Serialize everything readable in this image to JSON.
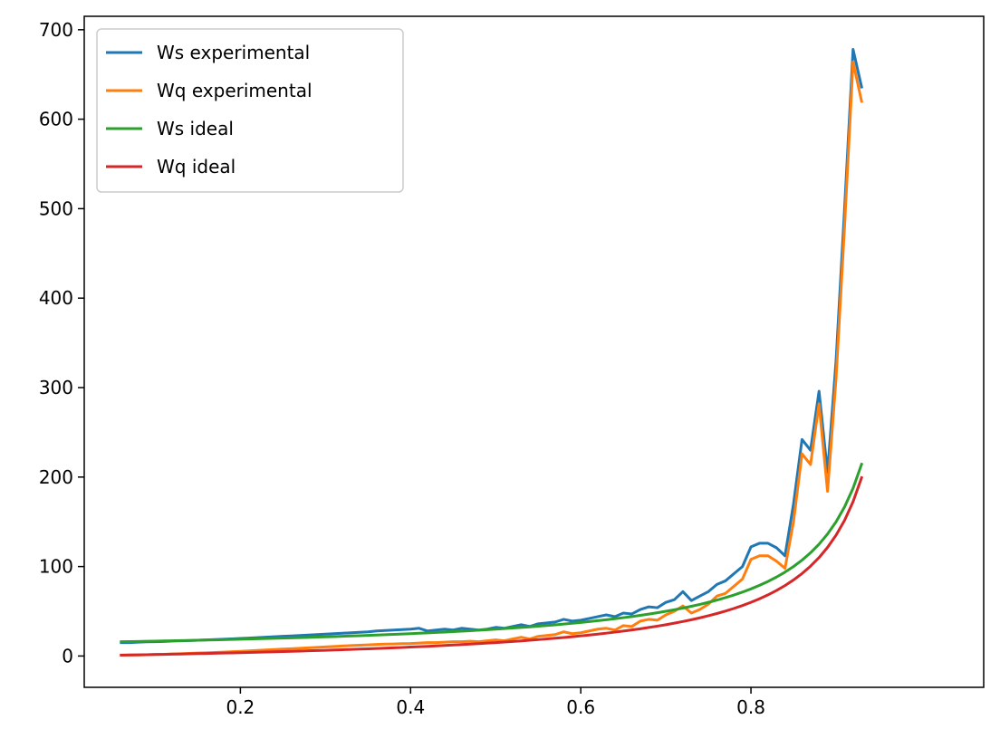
{
  "chart_data": {
    "type": "line",
    "title": "",
    "xlabel": "",
    "ylabel": "",
    "xlim": [
      0.0165,
      1.0735
    ],
    "ylim": [
      -35,
      715
    ],
    "xticks": [
      0.2,
      0.4,
      0.6,
      0.8
    ],
    "xtick_labels": [
      "0.2",
      "0.4",
      "0.6",
      "0.8"
    ],
    "yticks": [
      0,
      100,
      200,
      300,
      400,
      500,
      600,
      700
    ],
    "ytick_labels": [
      "0",
      "100",
      "200",
      "300",
      "400",
      "500",
      "600",
      "700"
    ],
    "grid": false,
    "legend_position": "top-left",
    "x": [
      0.06,
      0.07,
      0.08,
      0.09,
      0.1,
      0.11,
      0.12,
      0.13,
      0.14,
      0.15,
      0.16,
      0.17,
      0.18,
      0.19,
      0.2,
      0.21,
      0.22,
      0.23,
      0.24,
      0.25,
      0.26,
      0.27,
      0.28,
      0.29,
      0.3,
      0.31,
      0.32,
      0.33,
      0.34,
      0.35,
      0.36,
      0.37,
      0.38,
      0.39,
      0.4,
      0.41,
      0.42,
      0.43,
      0.44,
      0.45,
      0.46,
      0.47,
      0.48,
      0.49,
      0.5,
      0.51,
      0.52,
      0.53,
      0.54,
      0.55,
      0.56,
      0.57,
      0.58,
      0.59,
      0.6,
      0.61,
      0.62,
      0.63,
      0.64,
      0.65,
      0.66,
      0.67,
      0.68,
      0.69,
      0.7,
      0.71,
      0.72,
      0.73,
      0.74,
      0.75,
      0.76,
      0.77,
      0.78,
      0.79,
      0.8,
      0.81,
      0.82,
      0.83,
      0.84,
      0.85,
      0.86,
      0.87,
      0.88,
      0.89,
      0.9,
      0.91,
      0.92,
      0.93
    ],
    "series": [
      {
        "name": "Ws experimental",
        "color": "#1f77b4",
        "values": [
          15,
          15,
          15.5,
          15.8,
          16,
          16.3,
          16.7,
          17,
          17.3,
          17.6,
          18,
          18.4,
          18.8,
          19.2,
          19.6,
          20,
          20.5,
          21,
          21.5,
          22,
          22.5,
          23,
          23.5,
          24,
          24.5,
          25,
          25.5,
          26,
          26.5,
          27,
          28,
          28.5,
          29,
          29.5,
          30,
          31,
          28,
          29,
          30,
          29,
          31,
          30,
          29,
          30,
          32,
          31,
          33,
          35,
          33,
          36,
          37,
          38,
          41,
          39,
          40,
          42,
          44,
          46,
          44,
          48,
          47,
          52,
          55,
          54,
          60,
          63,
          72,
          62,
          67,
          72,
          80,
          84,
          92,
          100,
          122,
          126,
          126,
          121,
          112,
          170,
          242,
          230,
          296,
          205,
          330,
          500,
          678,
          636
        ]
      },
      {
        "name": "Wq experimental",
        "color": "#ff7f0e",
        "values": [
          1,
          1,
          1.2,
          1.5,
          1.8,
          2,
          2.3,
          2.6,
          3,
          3.3,
          3.6,
          4,
          4.4,
          4.8,
          5.2,
          5.7,
          6.2,
          6.7,
          7.2,
          7.7,
          8.2,
          8.7,
          9.2,
          9.7,
          10.2,
          10.7,
          11.2,
          11.7,
          12,
          12.5,
          13,
          13.3,
          13.5,
          13.8,
          14,
          14.5,
          15,
          15,
          15.5,
          16,
          16,
          16.5,
          16,
          17,
          18,
          17,
          19,
          21,
          19,
          22,
          23,
          24,
          27,
          25,
          26,
          28,
          30,
          31,
          29,
          34,
          33,
          39,
          41,
          40,
          46,
          50,
          56,
          48,
          52,
          58,
          67,
          70,
          78,
          86,
          108,
          112,
          112,
          106,
          98,
          150,
          226,
          214,
          282,
          184,
          310,
          480,
          664,
          620
        ]
      },
      {
        "name": "Ws ideal",
        "color": "#2ca02c",
        "values": [
          15.96,
          16.13,
          16.3,
          16.48,
          16.67,
          16.85,
          17.05,
          17.24,
          17.44,
          17.65,
          17.86,
          18.07,
          18.29,
          18.52,
          18.75,
          18.99,
          19.23,
          19.48,
          19.74,
          20.0,
          20.27,
          20.55,
          20.83,
          21.13,
          21.43,
          21.74,
          22.06,
          22.39,
          22.73,
          23.08,
          23.44,
          23.81,
          24.19,
          24.59,
          25.0,
          25.42,
          25.86,
          26.32,
          26.79,
          27.27,
          27.78,
          28.3,
          28.85,
          29.41,
          30.0,
          30.61,
          31.25,
          31.91,
          32.61,
          33.33,
          34.09,
          34.88,
          35.71,
          36.59,
          37.5,
          38.46,
          39.47,
          40.54,
          41.67,
          42.86,
          44.12,
          45.45,
          46.88,
          48.39,
          50.0,
          51.72,
          53.57,
          55.56,
          57.69,
          60.0,
          62.5,
          65.22,
          68.18,
          71.43,
          75.0,
          78.95,
          83.33,
          88.24,
          93.75,
          100.0,
          107.14,
          115.38,
          125.0,
          136.36,
          150.0,
          166.67,
          187.5,
          214.29
        ]
      },
      {
        "name": "Wq ideal",
        "color": "#d62728",
        "values": [
          0.96,
          1.13,
          1.3,
          1.48,
          1.67,
          1.85,
          2.05,
          2.24,
          2.44,
          2.65,
          2.86,
          3.07,
          3.29,
          3.52,
          3.75,
          3.99,
          4.23,
          4.48,
          4.74,
          5.0,
          5.27,
          5.55,
          5.83,
          6.13,
          6.43,
          6.74,
          7.06,
          7.39,
          7.73,
          8.08,
          8.44,
          8.81,
          9.19,
          9.59,
          10.0,
          10.42,
          10.86,
          11.32,
          11.79,
          12.27,
          12.78,
          13.3,
          13.85,
          14.41,
          15.0,
          15.61,
          16.25,
          16.91,
          17.61,
          18.33,
          19.09,
          19.88,
          20.71,
          21.59,
          22.5,
          23.46,
          24.47,
          25.54,
          26.67,
          27.86,
          29.12,
          30.45,
          31.88,
          33.39,
          35.0,
          36.72,
          38.57,
          40.56,
          42.69,
          45.0,
          47.5,
          50.22,
          53.18,
          56.43,
          60.0,
          63.95,
          68.33,
          73.24,
          78.75,
          85.0,
          92.14,
          100.38,
          110.0,
          121.36,
          135.0,
          151.67,
          172.5,
          199.29
        ]
      }
    ]
  }
}
